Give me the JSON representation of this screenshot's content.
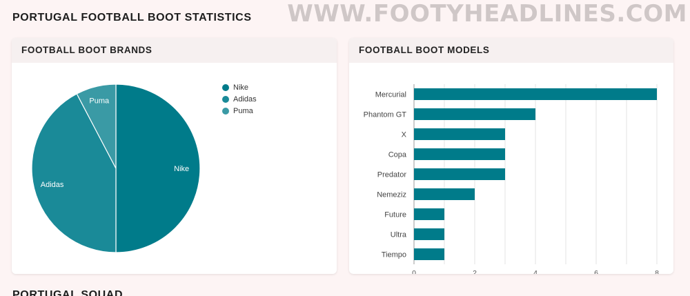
{
  "page": {
    "title": "PORTUGAL FOOTBALL BOOT STATISTICS",
    "watermark": "WWW.FOOTYHEADLINES.COM",
    "next_section_title": "PORTUGAL SQUAD"
  },
  "cards": {
    "brands": {
      "title": "FOOTBALL BOOT BRANDS"
    },
    "models": {
      "title": "FOOTBALL BOOT MODELS"
    }
  },
  "colors": {
    "nike": "#007b8a",
    "adidas": "#1a8a98",
    "puma": "#3a9aa5",
    "bar": "#007b8a"
  },
  "chart_data": [
    {
      "type": "pie",
      "title": "FOOTBALL BOOT BRANDS",
      "slices": [
        {
          "label": "Nike",
          "value": 13
        },
        {
          "label": "Adidas",
          "value": 11
        },
        {
          "label": "Puma",
          "value": 2
        }
      ],
      "legend": "top-right"
    },
    {
      "type": "bar",
      "orientation": "horizontal",
      "title": "FOOTBALL BOOT MODELS",
      "categories": [
        "Mercurial",
        "Phantom GT",
        "X",
        "Copa",
        "Predator",
        "Nemeziz",
        "Future",
        "Ultra",
        "Tiempo"
      ],
      "values": [
        8,
        4,
        3,
        3,
        3,
        2,
        1,
        1,
        1
      ],
      "xlim": [
        0,
        8
      ],
      "xticks": [
        0,
        2,
        4,
        6,
        8
      ],
      "grid": true
    }
  ]
}
